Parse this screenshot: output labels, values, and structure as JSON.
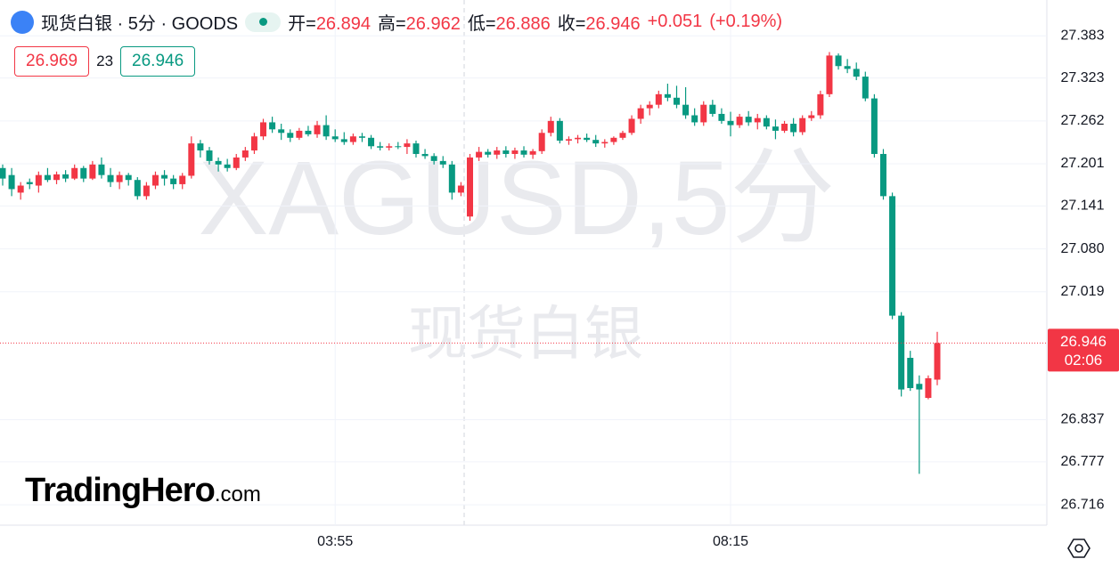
{
  "header": {
    "title": "现货白银 · 5分 · GOODS",
    "open_label": "开=",
    "open": 26.894,
    "high_label": "高=",
    "high": 26.962,
    "low_label": "低=",
    "low": 26.886,
    "close_label": "收=",
    "close": 26.946,
    "change": "+0.051",
    "change_pct": "(+0.19%)",
    "sell": "26.969",
    "spread": "23",
    "buy": "26.946"
  },
  "watermark": {
    "symbol": "XAGUSD,5分",
    "name": "现货白银"
  },
  "logo": {
    "name": "TradingHero",
    "domain": ".com"
  },
  "chart_data": {
    "type": "candlestick",
    "up_color": "#f23645",
    "down_color": "#089981",
    "last_price": 26.946,
    "countdown": "02:06",
    "ylim": [
      26.687,
      27.434
    ],
    "yticks": [
      26.716,
      26.777,
      26.837,
      27.019,
      {
        "value": 27.08,
        "label": "27.080"
      },
      27.141,
      27.201,
      27.262,
      27.323,
      27.383
    ],
    "grid": true,
    "categories": [
      null,
      null,
      null,
      null,
      null,
      null,
      null,
      null,
      null,
      null,
      null,
      null,
      null,
      null,
      null,
      null,
      null,
      null,
      null,
      null,
      null,
      null,
      null,
      null,
      null,
      null,
      null,
      null,
      null,
      null,
      null,
      null,
      null,
      null,
      null,
      null,
      null,
      "03:55",
      null,
      null,
      null,
      null,
      null,
      null,
      null,
      null,
      null,
      null,
      null,
      null,
      null,
      null,
      null,
      null,
      null,
      null,
      null,
      null,
      null,
      null,
      null,
      null,
      null,
      null,
      null,
      null,
      null,
      null,
      null,
      null,
      null,
      null,
      null,
      null,
      null,
      null,
      null,
      null,
      null,
      null,
      null,
      "08:15",
      null,
      null,
      null,
      null,
      null,
      null,
      null,
      null,
      null,
      null,
      null,
      null,
      null,
      null,
      null,
      null,
      null,
      null,
      null,
      null,
      null,
      null,
      null
    ],
    "open": [
      27.195,
      27.185,
      27.16,
      27.175,
      27.17,
      27.185,
      27.178,
      27.186,
      27.18,
      27.195,
      27.18,
      27.2,
      27.185,
      27.175,
      27.185,
      27.178,
      27.155,
      27.17,
      27.185,
      27.18,
      27.172,
      27.184,
      27.23,
      27.22,
      27.205,
      27.2,
      27.195,
      27.21,
      27.22,
      27.24,
      27.26,
      27.25,
      27.245,
      27.238,
      27.248,
      27.243,
      27.256,
      27.24,
      27.236,
      27.232,
      27.24,
      27.238,
      27.226,
      27.224,
      27.226,
      27.225,
      27.23,
      27.215,
      27.212,
      27.205,
      27.2,
      27.16,
      27.126,
      27.21,
      27.218,
      27.214,
      27.22,
      27.215,
      27.22,
      27.214,
      27.219,
      27.245,
      27.262,
      27.234,
      27.236,
      27.238,
      27.235,
      27.23,
      27.232,
      27.238,
      27.245,
      27.265,
      27.28,
      27.285,
      27.3,
      27.295,
      27.285,
      27.27,
      27.26,
      27.285,
      27.272,
      27.262,
      27.256,
      27.268,
      27.26,
      27.266,
      27.254,
      27.248,
      27.258,
      27.246,
      27.266,
      27.27,
      27.3,
      27.355,
      27.34,
      27.336,
      27.325,
      27.294,
      27.215,
      27.155,
      26.985,
      26.925,
      26.888,
      26.868,
      26.894
    ],
    "high": [
      27.2,
      27.195,
      27.175,
      27.18,
      27.19,
      27.195,
      27.19,
      27.192,
      27.2,
      27.198,
      27.205,
      27.21,
      27.195,
      27.19,
      27.188,
      27.182,
      27.175,
      27.19,
      27.192,
      27.185,
      27.188,
      27.24,
      27.235,
      27.225,
      27.21,
      27.208,
      27.215,
      27.225,
      27.245,
      27.265,
      27.268,
      27.258,
      27.25,
      27.252,
      27.255,
      27.262,
      27.27,
      27.25,
      27.246,
      27.244,
      27.245,
      27.242,
      27.232,
      27.23,
      27.232,
      27.236,
      27.234,
      27.222,
      27.216,
      27.212,
      27.205,
      27.175,
      27.215,
      27.225,
      27.222,
      27.225,
      27.226,
      27.224,
      27.226,
      27.222,
      27.25,
      27.268,
      27.266,
      27.24,
      27.242,
      27.244,
      27.242,
      27.236,
      27.24,
      27.248,
      27.27,
      27.285,
      27.29,
      27.305,
      27.315,
      27.312,
      27.31,
      27.28,
      27.29,
      27.292,
      27.28,
      27.275,
      27.272,
      27.276,
      27.272,
      27.27,
      27.264,
      27.262,
      27.266,
      27.27,
      27.276,
      27.305,
      27.36,
      27.358,
      27.35,
      27.345,
      27.332,
      27.3,
      27.222,
      27.16,
      26.99,
      26.935,
      26.9,
      26.9,
      26.962
    ],
    "low": [
      27.17,
      27.155,
      27.15,
      27.165,
      27.16,
      27.175,
      27.172,
      27.175,
      27.178,
      27.175,
      27.178,
      27.18,
      27.168,
      27.165,
      27.17,
      27.15,
      27.15,
      27.165,
      27.17,
      27.165,
      27.165,
      27.18,
      27.21,
      27.2,
      27.19,
      27.19,
      27.192,
      27.205,
      27.215,
      27.235,
      27.245,
      27.235,
      27.232,
      27.235,
      27.24,
      27.238,
      27.235,
      27.232,
      27.228,
      27.228,
      27.232,
      27.222,
      27.22,
      27.22,
      27.222,
      27.215,
      27.21,
      27.208,
      27.2,
      27.195,
      27.15,
      27.155,
      27.12,
      27.205,
      27.21,
      27.208,
      27.21,
      27.208,
      27.21,
      27.208,
      27.215,
      27.24,
      27.23,
      27.228,
      27.23,
      27.232,
      27.225,
      27.224,
      27.228,
      27.235,
      27.242,
      27.258,
      27.27,
      27.28,
      27.29,
      27.28,
      27.265,
      27.255,
      27.255,
      27.268,
      27.258,
      27.24,
      27.252,
      27.255,
      27.25,
      27.25,
      27.236,
      27.245,
      27.24,
      27.242,
      27.262,
      27.265,
      27.296,
      27.335,
      27.33,
      27.32,
      27.29,
      27.21,
      27.15,
      26.98,
      26.87,
      26.878,
      26.76,
      26.866,
      26.886
    ],
    "close": [
      27.18,
      27.165,
      27.17,
      27.172,
      27.185,
      27.178,
      27.186,
      27.18,
      27.195,
      27.18,
      27.2,
      27.185,
      27.175,
      27.185,
      27.178,
      27.155,
      27.17,
      27.185,
      27.18,
      27.172,
      27.184,
      27.23,
      27.22,
      27.205,
      27.2,
      27.195,
      27.21,
      27.22,
      27.24,
      27.26,
      27.25,
      27.245,
      27.238,
      27.248,
      27.243,
      27.256,
      27.24,
      27.236,
      27.232,
      27.24,
      27.238,
      27.226,
      27.224,
      27.226,
      27.225,
      27.23,
      27.215,
      27.212,
      27.205,
      27.2,
      27.16,
      27.17,
      27.21,
      27.218,
      27.214,
      27.22,
      27.215,
      27.22,
      27.214,
      27.219,
      27.245,
      27.262,
      27.234,
      27.236,
      27.238,
      27.235,
      27.23,
      27.232,
      27.238,
      27.245,
      27.265,
      27.28,
      27.285,
      27.3,
      27.295,
      27.285,
      27.27,
      27.26,
      27.285,
      27.272,
      27.262,
      27.256,
      27.268,
      27.26,
      27.266,
      27.254,
      27.248,
      27.258,
      27.246,
      27.266,
      27.27,
      27.3,
      27.355,
      27.34,
      27.336,
      27.325,
      27.294,
      27.215,
      27.155,
      26.985,
      26.88,
      26.882,
      26.88,
      26.896,
      26.946
    ]
  }
}
